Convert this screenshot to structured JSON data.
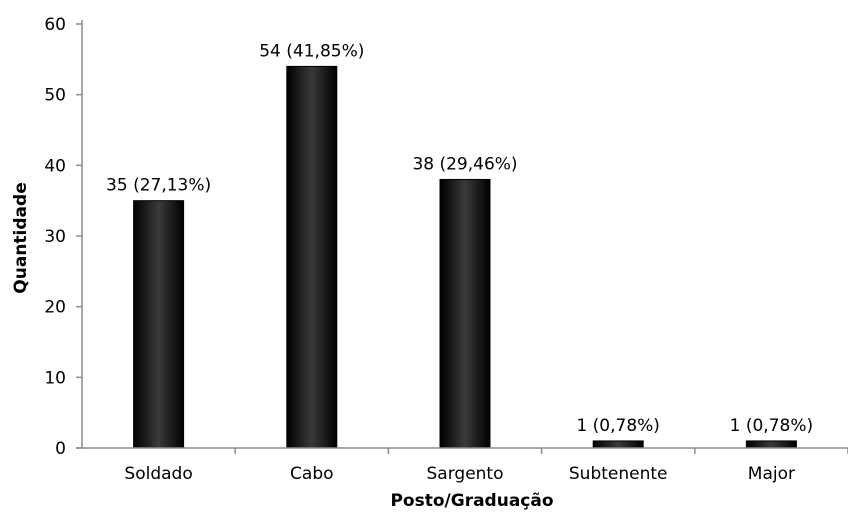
{
  "chart_data": {
    "type": "bar",
    "categories": [
      "Soldado",
      "Cabo",
      "Sargento",
      "Subtenente",
      "Major"
    ],
    "values": [
      35,
      54,
      38,
      1,
      1
    ],
    "data_labels": [
      "35 (27,13%)",
      "54 (41,85%)",
      "38 (29,46%)",
      "1 (0,78%)",
      "1 (0,78%)"
    ],
    "xlabel": "Posto/Graduação",
    "ylabel": "Quantidade",
    "ylim": [
      0,
      60
    ],
    "yticks": [
      0,
      10,
      20,
      30,
      40,
      50,
      60
    ],
    "ytick_labels": [
      "0",
      "10",
      "20",
      "30",
      "40",
      "50",
      "60"
    ],
    "grid": false,
    "legend": "none"
  },
  "colors": {
    "bar": "#000000",
    "bar_highlight": "#3a3a3a",
    "axis": "#8c8c8c"
  }
}
